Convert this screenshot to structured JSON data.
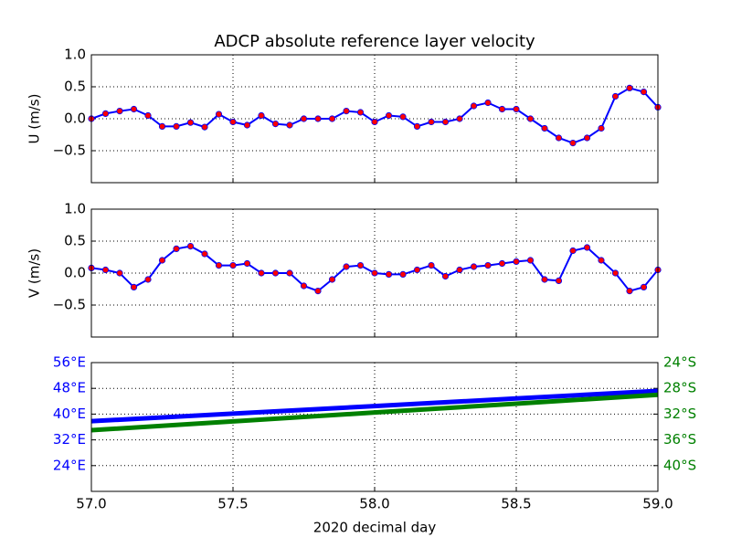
{
  "chart_data": [
    {
      "type": "line",
      "title": "ADCP absolute reference layer velocity",
      "ylabel": "U (m/s)",
      "x": [
        57.0,
        57.05,
        57.1,
        57.15,
        57.2,
        57.25,
        57.3,
        57.35,
        57.4,
        57.45,
        57.5,
        57.55,
        57.6,
        57.65,
        57.7,
        57.75,
        57.8,
        57.85,
        57.9,
        57.95,
        58.0,
        58.05,
        58.1,
        58.15,
        58.2,
        58.25,
        58.3,
        58.35,
        58.4,
        58.45,
        58.5,
        58.55,
        58.6,
        58.65,
        58.7,
        58.75,
        58.8,
        58.85,
        58.9,
        58.95,
        59.0
      ],
      "series": [
        {
          "color": "#0000ff",
          "marker_color": "#ff0000",
          "values": [
            0.0,
            0.08,
            0.12,
            0.15,
            0.05,
            -0.12,
            -0.12,
            -0.06,
            -0.13,
            0.07,
            -0.05,
            -0.1,
            0.05,
            -0.08,
            -0.1,
            0.0,
            0.0,
            0.0,
            0.12,
            0.1,
            -0.05,
            0.05,
            0.03,
            -0.12,
            -0.05,
            -0.05,
            0.0,
            0.2,
            0.25,
            0.15,
            0.15,
            0.0,
            -0.15,
            -0.3,
            -0.38,
            -0.3,
            -0.15,
            0.35,
            0.48,
            0.42,
            0.18
          ]
        }
      ],
      "xlim": [
        57,
        59
      ],
      "xticks": [
        57,
        57.5,
        58,
        58.5,
        59
      ],
      "ylim": [
        -1,
        1
      ],
      "yticks": [
        {
          "value": 1,
          "label": "1.0"
        },
        {
          "value": 0.5,
          "label": "0.5"
        },
        {
          "value": 0,
          "label": "0.0"
        },
        {
          "value": -0.5,
          "label": "−0.5"
        }
      ],
      "grid": true
    },
    {
      "type": "line",
      "ylabel": "V (m/s)",
      "x": [
        57.0,
        57.05,
        57.1,
        57.15,
        57.2,
        57.25,
        57.3,
        57.35,
        57.4,
        57.45,
        57.5,
        57.55,
        57.6,
        57.65,
        57.7,
        57.75,
        57.8,
        57.85,
        57.9,
        57.95,
        58.0,
        58.05,
        58.1,
        58.15,
        58.2,
        58.25,
        58.3,
        58.35,
        58.4,
        58.45,
        58.5,
        58.55,
        58.6,
        58.65,
        58.7,
        58.75,
        58.8,
        58.85,
        58.9,
        58.95,
        59.0
      ],
      "series": [
        {
          "color": "#0000ff",
          "marker_color": "#ff0000",
          "values": [
            0.08,
            0.05,
            0.0,
            -0.22,
            -0.1,
            0.2,
            0.38,
            0.42,
            0.3,
            0.12,
            0.12,
            0.15,
            0.0,
            0.0,
            0.0,
            -0.2,
            -0.28,
            -0.1,
            0.1,
            0.12,
            0.0,
            -0.02,
            -0.02,
            0.05,
            0.12,
            -0.05,
            0.05,
            0.1,
            0.12,
            0.15,
            0.18,
            0.2,
            -0.1,
            -0.12,
            0.35,
            0.4,
            0.2,
            0.0,
            -0.28,
            -0.22,
            0.05
          ]
        }
      ],
      "xlim": [
        57,
        59
      ],
      "xticks": [
        57,
        57.5,
        58,
        58.5,
        59
      ],
      "ylim": [
        -1,
        1
      ],
      "yticks": [
        {
          "value": 1,
          "label": "1.0"
        },
        {
          "value": 0.5,
          "label": "0.5"
        },
        {
          "value": 0,
          "label": "0.0"
        },
        {
          "value": -0.5,
          "label": "−0.5"
        }
      ],
      "grid": true
    },
    {
      "type": "line",
      "xlabel": "2020 decimal day",
      "x": [
        57.0,
        57.5,
        58.0,
        58.5,
        59.0
      ],
      "series": [
        {
          "color": "#0000ff",
          "values": [
            37.8,
            40.15,
            42.5,
            44.85,
            47.2
          ]
        },
        {
          "color": "#008000",
          "axis": "y2",
          "values": [
            -34.5,
            -33.13,
            -31.75,
            -30.38,
            -29.0
          ]
        }
      ],
      "xlim": [
        57,
        59
      ],
      "xticks": [
        {
          "value": 57,
          "label": "57.0"
        },
        {
          "value": 57.5,
          "label": "57.5"
        },
        {
          "value": 58,
          "label": "58.0"
        },
        {
          "value": 58.5,
          "label": "58.5"
        },
        {
          "value": 59,
          "label": "59.0"
        }
      ],
      "ylim": [
        16,
        56
      ],
      "yticks": [
        {
          "value": 24,
          "label": "24°E"
        },
        {
          "value": 32,
          "label": "32°E"
        },
        {
          "value": 40,
          "label": "40°E"
        },
        {
          "value": 48,
          "label": "48°E"
        },
        {
          "value": 56,
          "label": "56°E"
        }
      ],
      "ytick_color": "#0000ff",
      "y2lim": [
        -44,
        -24
      ],
      "y2ticks": [
        {
          "value": -40,
          "label": "40°S"
        },
        {
          "value": -36,
          "label": "36°S"
        },
        {
          "value": -32,
          "label": "32°S"
        },
        {
          "value": -28,
          "label": "28°S"
        },
        {
          "value": -24,
          "label": "24°S"
        }
      ],
      "y2tick_color": "#008000",
      "grid": true
    }
  ]
}
